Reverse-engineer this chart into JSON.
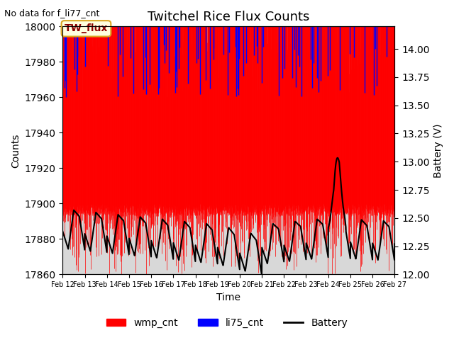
{
  "title": "Twitchel Rice Flux Counts",
  "no_data_text": "No data for f_li77_cnt",
  "legend_box_text": "TW_flux",
  "xlabel": "Time",
  "ylabel_left": "Counts",
  "ylabel_right": "Battery (V)",
  "ylim_left": [
    17860,
    18000
  ],
  "ylim_right": [
    12.0,
    14.2
  ],
  "xlim": [
    0,
    15
  ],
  "xtick_labels": [
    "Feb 12",
    "Feb 13",
    "Feb 14",
    "Feb 15",
    "Feb 16",
    "Feb 17",
    "Feb 18",
    "Feb 19",
    "Feb 20",
    "Feb 21",
    "Feb 22",
    "Feb 23",
    "Feb 24",
    "Feb 25",
    "Feb 26",
    "Feb 27"
  ],
  "xtick_positions": [
    0,
    1,
    2,
    3,
    4,
    5,
    6,
    7,
    8,
    9,
    10,
    11,
    12,
    13,
    14,
    15
  ],
  "background_color": "#ffffff",
  "plot_bg_color": "#d8d8d8",
  "legend_entries": [
    "wmp_cnt",
    "li75_cnt",
    "Battery"
  ],
  "legend_colors": [
    "red",
    "blue",
    "black"
  ],
  "wmp_color": "red",
  "li75_color": "blue",
  "battery_color": "black",
  "title_fontsize": 13,
  "axis_fontsize": 10
}
